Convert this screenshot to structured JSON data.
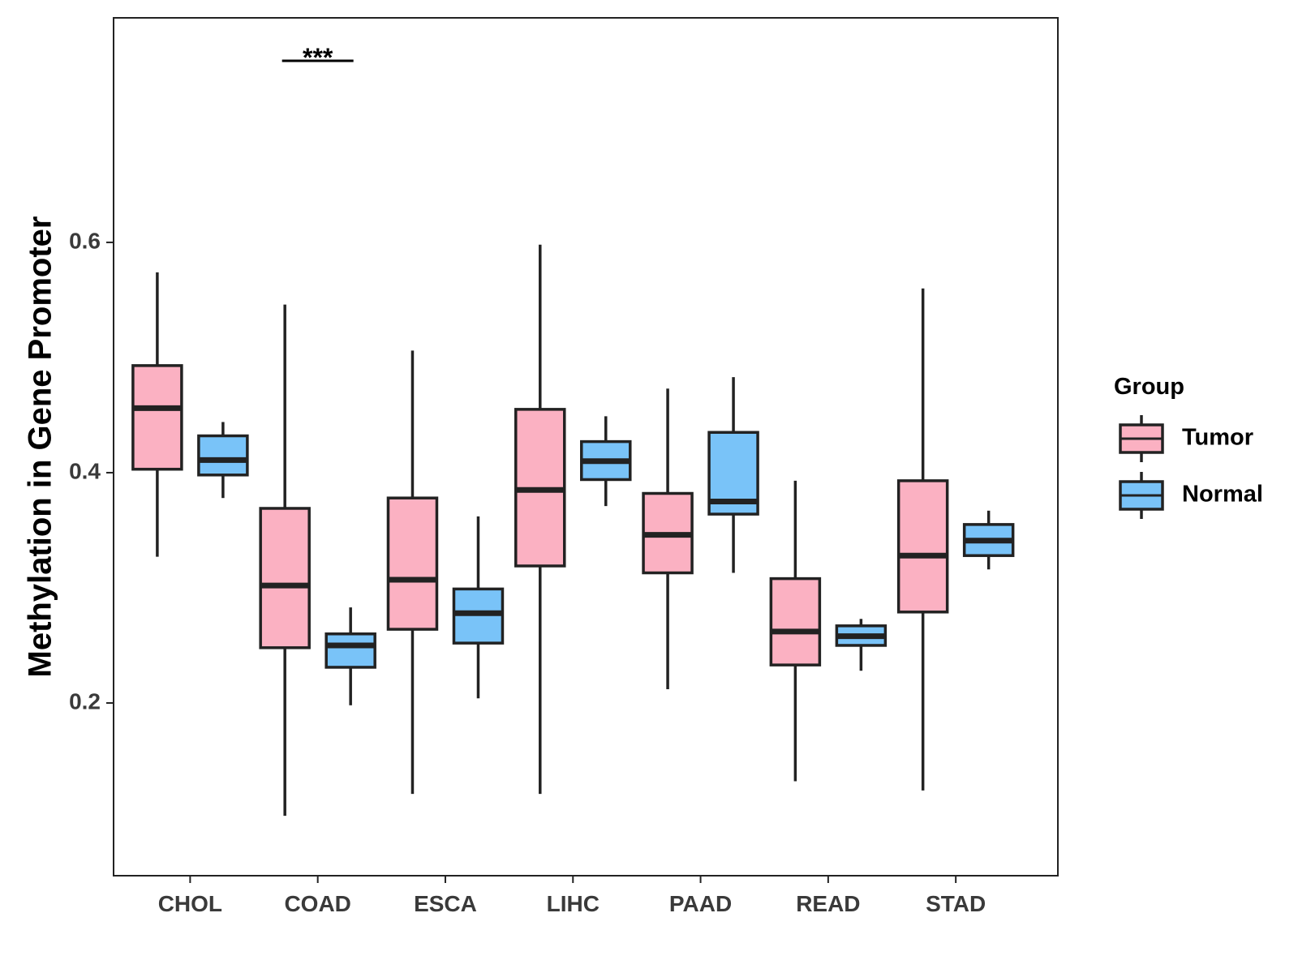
{
  "chart_data": {
    "type": "boxplot",
    "title": "",
    "xlabel": "",
    "ylabel": "Methylation in Gene Promoter",
    "ylim": [
      0.05,
      0.795
    ],
    "yticks": [
      0.2,
      0.4,
      0.6
    ],
    "ytick_labels": [
      "0.2",
      "0.4",
      "0.6"
    ],
    "grid": false,
    "categories": [
      "CHOL",
      "COAD",
      "ESCA",
      "LIHC",
      "PAAD",
      "READ",
      "STAD"
    ],
    "legend": {
      "title": "Group",
      "position": "right",
      "entries": [
        "Tumor",
        "Normal"
      ]
    },
    "series": [
      {
        "name": "Tumor",
        "color": "#FBB1C2",
        "boxes": [
          {
            "category": "CHOL",
            "min": 0.327,
            "q1": 0.403,
            "median": 0.456,
            "q3": 0.493,
            "max": 0.574
          },
          {
            "category": "COAD",
            "min": 0.102,
            "q1": 0.248,
            "median": 0.302,
            "q3": 0.369,
            "max": 0.546
          },
          {
            "category": "ESCA",
            "min": 0.121,
            "q1": 0.264,
            "median": 0.307,
            "q3": 0.378,
            "max": 0.506
          },
          {
            "category": "LIHC",
            "min": 0.121,
            "q1": 0.319,
            "median": 0.385,
            "q3": 0.455,
            "max": 0.598
          },
          {
            "category": "PAAD",
            "min": 0.212,
            "q1": 0.313,
            "median": 0.346,
            "q3": 0.382,
            "max": 0.473
          },
          {
            "category": "READ",
            "min": 0.132,
            "q1": 0.233,
            "median": 0.262,
            "q3": 0.308,
            "max": 0.393
          },
          {
            "category": "STAD",
            "min": 0.124,
            "q1": 0.279,
            "median": 0.328,
            "q3": 0.393,
            "max": 0.56
          }
        ]
      },
      {
        "name": "Normal",
        "color": "#79C3F8",
        "boxes": [
          {
            "category": "CHOL",
            "min": 0.378,
            "q1": 0.398,
            "median": 0.411,
            "q3": 0.432,
            "max": 0.444
          },
          {
            "category": "COAD",
            "min": 0.198,
            "q1": 0.231,
            "median": 0.25,
            "q3": 0.26,
            "max": 0.283
          },
          {
            "category": "ESCA",
            "min": 0.204,
            "q1": 0.252,
            "median": 0.278,
            "q3": 0.299,
            "max": 0.362
          },
          {
            "category": "LIHC",
            "min": 0.371,
            "q1": 0.394,
            "median": 0.41,
            "q3": 0.427,
            "max": 0.449
          },
          {
            "category": "PAAD",
            "min": 0.313,
            "q1": 0.364,
            "median": 0.375,
            "q3": 0.435,
            "max": 0.483
          },
          {
            "category": "READ",
            "min": 0.228,
            "q1": 0.25,
            "median": 0.258,
            "q3": 0.267,
            "max": 0.273
          },
          {
            "category": "STAD",
            "min": 0.316,
            "q1": 0.328,
            "median": 0.341,
            "q3": 0.355,
            "max": 0.367
          }
        ]
      }
    ],
    "annotations": [
      {
        "category": "COAD",
        "text": "***",
        "type": "significance-bracket"
      }
    ]
  }
}
